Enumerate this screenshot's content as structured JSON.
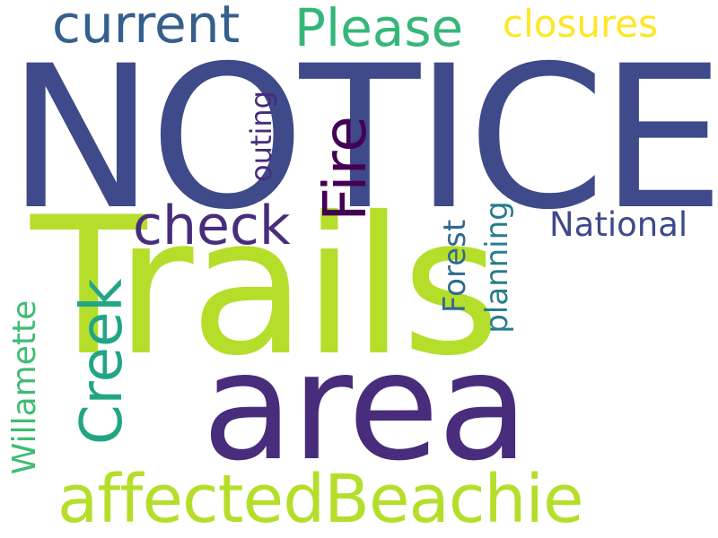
{
  "words": [
    {
      "id": "notice",
      "text": "NOTICE",
      "color": "#3e4a89",
      "orientation": "horizontal"
    },
    {
      "id": "trails",
      "text": "Trails",
      "color": "#b5de2b",
      "orientation": "horizontal"
    },
    {
      "id": "area",
      "text": "area",
      "color": "#472d7b",
      "orientation": "horizontal"
    },
    {
      "id": "affectedbeachie",
      "text": "affectedBeachie",
      "color": "#b5de2b",
      "orientation": "horizontal"
    },
    {
      "id": "current",
      "text": "current",
      "color": "#355f8d",
      "orientation": "horizontal"
    },
    {
      "id": "please",
      "text": "Please",
      "color": "#35b779",
      "orientation": "horizontal"
    },
    {
      "id": "closures",
      "text": "closures",
      "color": "#fde725",
      "orientation": "horizontal"
    },
    {
      "id": "check",
      "text": "check",
      "color": "#472d7b",
      "orientation": "horizontal"
    },
    {
      "id": "national",
      "text": "National",
      "color": "#3e4a89",
      "orientation": "horizontal"
    },
    {
      "id": "fire",
      "text": "Fire",
      "color": "#440154",
      "orientation": "vertical"
    },
    {
      "id": "creek",
      "text": "Creek",
      "color": "#21a685",
      "orientation": "vertical"
    },
    {
      "id": "willamette",
      "text": "Willamette",
      "color": "#3fbc73",
      "orientation": "vertical"
    },
    {
      "id": "forest",
      "text": "Forest",
      "color": "#31688e",
      "orientation": "vertical"
    },
    {
      "id": "planning",
      "text": "planning",
      "color": "#287c8e",
      "orientation": "vertical"
    },
    {
      "id": "outing",
      "text": "outing",
      "color": "#472d7b",
      "orientation": "vertical"
    }
  ]
}
